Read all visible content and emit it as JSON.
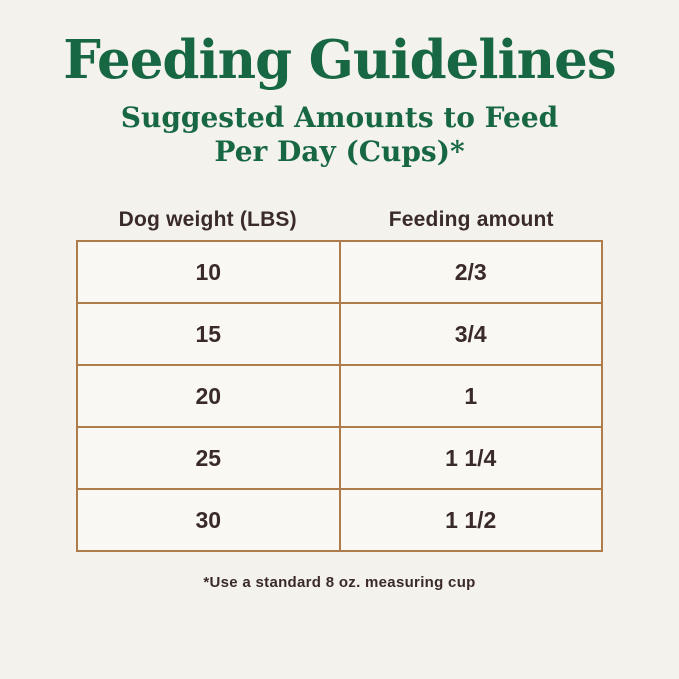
{
  "chart_data": {
    "type": "table",
    "title": "Feeding Guidelines",
    "subtitle_line1": "Suggested Amounts to Feed",
    "subtitle_line2": "Per Day (Cups)*",
    "columns": [
      "Dog weight (LBS)",
      "Feeding amount"
    ],
    "rows": [
      [
        "10",
        "2/3"
      ],
      [
        "15",
        "3/4"
      ],
      [
        "20",
        "1"
      ],
      [
        "25",
        "1 1/4"
      ],
      [
        "30",
        "1 1/2"
      ]
    ],
    "footnote": "*Use a standard 8 oz. measuring cup"
  },
  "colors": {
    "background": "#f3f2ec",
    "cell_background": "#faf8f2",
    "title_green": "#176842",
    "text_dark": "#3a2b29",
    "border_tan": "#b07c4c"
  }
}
